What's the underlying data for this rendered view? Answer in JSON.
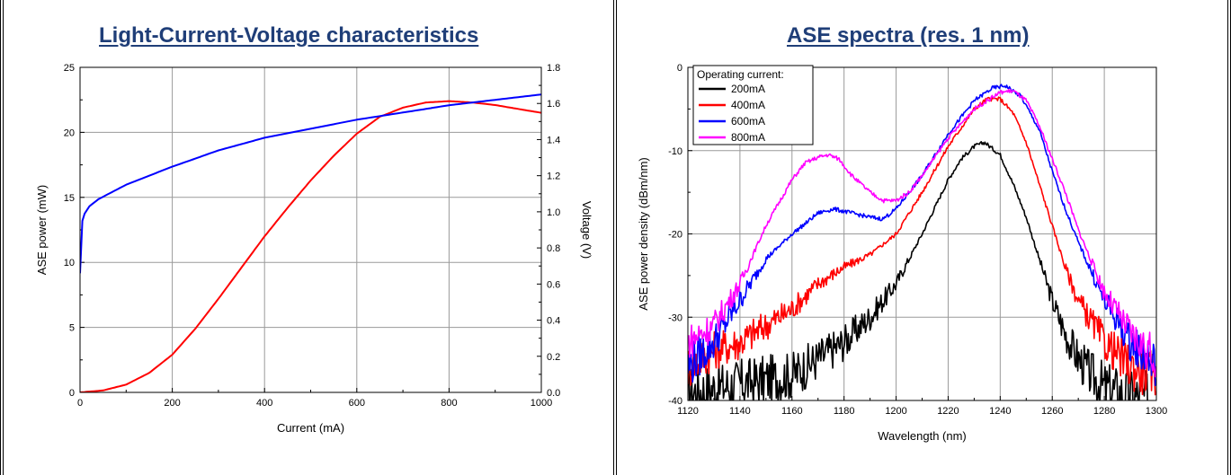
{
  "charts": {
    "liv": {
      "title": "Light-Current-Voltage characteristics"
    },
    "ase": {
      "title": "ASE spectra (res. 1 nm)"
    }
  },
  "chart_data": [
    {
      "type": "line",
      "title": "Light-Current-Voltage characteristics",
      "xlabel": "Current (mA)",
      "ylabel": "ASE power (mW)",
      "y2label": "Voltage (V)",
      "xlim": [
        0,
        1000
      ],
      "ylim": [
        0,
        25
      ],
      "y2lim": [
        0,
        1.8
      ],
      "x_ticks": [
        "0",
        "200",
        "400",
        "600",
        "800",
        "1000"
      ],
      "y_ticks": [
        "0",
        "5",
        "10",
        "15",
        "20",
        "25"
      ],
      "y2_ticks": [
        "0.0",
        "0.2",
        "0.4",
        "0.6",
        "0.8",
        "1.0",
        "1.2",
        "1.4",
        "1.6",
        "1.8"
      ],
      "grid": true,
      "series": [
        {
          "axis": "left",
          "color": "#ff0000",
          "x": [
            0,
            50,
            100,
            150,
            200,
            250,
            300,
            350,
            400,
            450,
            500,
            550,
            600,
            650,
            700,
            750,
            800,
            850,
            900,
            950,
            1000
          ],
          "values": [
            0.0,
            0.15,
            0.6,
            1.5,
            2.9,
            4.9,
            7.2,
            9.6,
            12.0,
            14.2,
            16.3,
            18.2,
            19.9,
            21.2,
            21.9,
            22.3,
            22.4,
            22.3,
            22.1,
            21.8,
            21.5
          ]
        },
        {
          "axis": "right",
          "color": "#0000ff",
          "x": [
            0,
            2,
            5,
            10,
            20,
            40,
            70,
            100,
            150,
            200,
            300,
            400,
            500,
            600,
            700,
            800,
            900,
            1000
          ],
          "values": [
            0.66,
            0.88,
            0.95,
            0.99,
            1.03,
            1.07,
            1.11,
            1.15,
            1.2,
            1.25,
            1.34,
            1.41,
            1.46,
            1.51,
            1.55,
            1.59,
            1.62,
            1.65
          ]
        }
      ]
    },
    {
      "type": "line",
      "title": "ASE spectra (res. 1 nm)",
      "xlabel": "Wavelength (nm)",
      "ylabel": "ASE power density (dBm/nm)",
      "xlim": [
        1120,
        1300
      ],
      "ylim": [
        -40,
        0
      ],
      "x_ticks": [
        "1120",
        "1140",
        "1160",
        "1180",
        "1200",
        "1220",
        "1240",
        "1260",
        "1280",
        "1300"
      ],
      "y_ticks": [
        "-40",
        "-30",
        "-20",
        "-10",
        "0"
      ],
      "grid": true,
      "legend": {
        "title": "Operating current:",
        "position": "top-left"
      },
      "series": [
        {
          "name": "200mA",
          "color": "#000000",
          "x": [
            1120,
            1130,
            1140,
            1150,
            1160,
            1170,
            1180,
            1190,
            1200,
            1210,
            1220,
            1225,
            1230,
            1234,
            1240,
            1245,
            1250,
            1255,
            1260,
            1265,
            1270,
            1275,
            1280,
            1290,
            1300
          ],
          "values": [
            -39,
            -38.5,
            -38,
            -37.5,
            -37,
            -35,
            -33,
            -30,
            -26,
            -20,
            -13.5,
            -11,
            -9.5,
            -9,
            -10.5,
            -14,
            -18,
            -23,
            -28,
            -32,
            -35,
            -37,
            -38.5,
            -39.5,
            -40
          ]
        },
        {
          "name": "400mA",
          "color": "#ff0000",
          "x": [
            1120,
            1130,
            1140,
            1150,
            1160,
            1170,
            1180,
            1190,
            1200,
            1210,
            1220,
            1230,
            1235,
            1240,
            1245,
            1250,
            1255,
            1260,
            1265,
            1270,
            1280,
            1290,
            1300
          ],
          "values": [
            -36,
            -34,
            -33,
            -31,
            -29,
            -26,
            -24,
            -22.5,
            -20,
            -15,
            -9.5,
            -5,
            -3.8,
            -3.8,
            -5.5,
            -9,
            -14,
            -19,
            -24,
            -28,
            -33,
            -36,
            -37
          ]
        },
        {
          "name": "600mA",
          "color": "#0000ff",
          "x": [
            1120,
            1130,
            1140,
            1150,
            1160,
            1165,
            1170,
            1176,
            1183,
            1190,
            1195,
            1200,
            1210,
            1220,
            1230,
            1237,
            1242,
            1248,
            1255,
            1260,
            1265,
            1270,
            1280,
            1290,
            1300
          ],
          "values": [
            -36,
            -33,
            -28,
            -23,
            -20,
            -18.8,
            -17.5,
            -17,
            -17.5,
            -18,
            -18.2,
            -17,
            -13,
            -8,
            -4,
            -2.5,
            -2.2,
            -3.5,
            -7.5,
            -12.5,
            -17,
            -21,
            -28,
            -33,
            -36
          ]
        },
        {
          "name": "800mA",
          "color": "#ff00ff",
          "x": [
            1120,
            1130,
            1140,
            1150,
            1160,
            1165,
            1170,
            1174,
            1178,
            1183,
            1190,
            1195,
            1200,
            1205,
            1210,
            1220,
            1230,
            1240,
            1245,
            1250,
            1255,
            1260,
            1265,
            1270,
            1280,
            1290,
            1300
          ],
          "values": [
            -33,
            -31,
            -26,
            -19,
            -13.5,
            -11.5,
            -10.8,
            -10.5,
            -11,
            -13,
            -15,
            -16,
            -16,
            -15,
            -13,
            -8.5,
            -5,
            -3,
            -2.8,
            -4,
            -7,
            -11,
            -15,
            -19.5,
            -27,
            -32,
            -35
          ]
        }
      ]
    }
  ]
}
